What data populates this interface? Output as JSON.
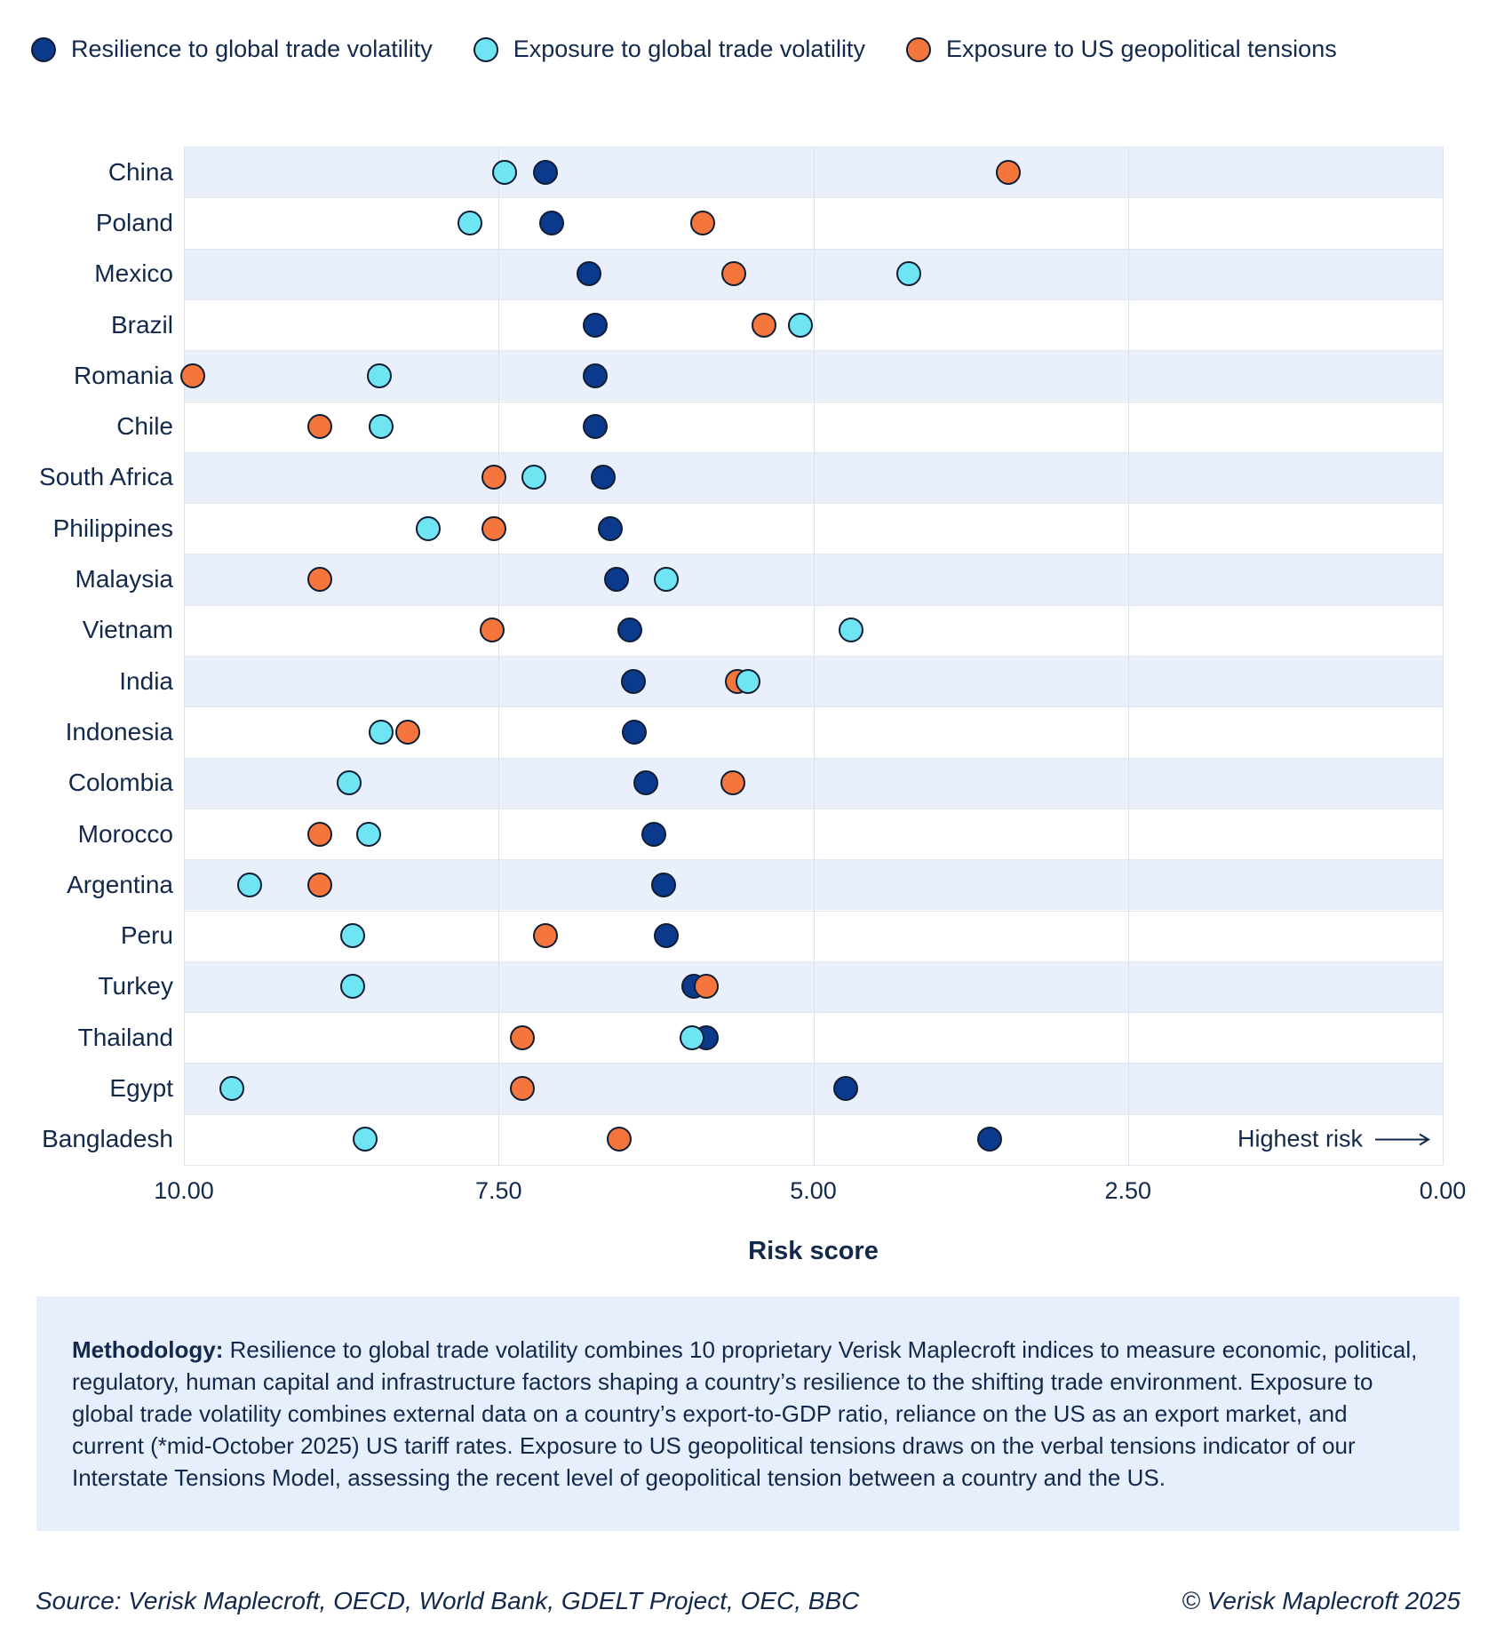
{
  "colors": {
    "text": "#13294B",
    "stripe": "#E9F0FB",
    "gridline": "#DCE2EC",
    "dot_border": "#0F1D35",
    "methodology_bg": "#E7EFFC"
  },
  "chart_data": {
    "type": "scatter",
    "subtype": "horizontal-dot-plot",
    "xlabel": "Risk score",
    "x_axis": {
      "min": 0,
      "max": 10,
      "reversed": true,
      "ticks": [
        "10.00",
        "7.50",
        "5.00",
        "2.50",
        "0.00"
      ]
    },
    "grid": true,
    "legend_position": "top",
    "annotation": {
      "label": "Highest risk",
      "arrow_direction": "right"
    },
    "series": [
      {
        "key": "resilience",
        "name": "Resilience to global trade volatility",
        "color": "#0B3A8C"
      },
      {
        "key": "exposure_trade",
        "name": "Exposure to global trade volatility",
        "color": "#6FE4F2"
      },
      {
        "key": "exposure_us",
        "name": "Exposure to US geopolitical tensions",
        "color": "#F5763C"
      }
    ],
    "draw_order": [
      "resilience",
      "exposure_us",
      "exposure_trade"
    ],
    "rows": [
      {
        "country": "China",
        "resilience": 7.13,
        "exposure_trade": 7.45,
        "exposure_us": 3.45
      },
      {
        "country": "Poland",
        "resilience": 7.08,
        "exposure_trade": 7.73,
        "exposure_us": 5.88
      },
      {
        "country": "Mexico",
        "resilience": 6.78,
        "exposure_trade": 4.24,
        "exposure_us": 5.63
      },
      {
        "country": "Brazil",
        "resilience": 6.73,
        "exposure_trade": 5.1,
        "exposure_us": 5.39
      },
      {
        "country": "Romania",
        "resilience": 6.73,
        "exposure_trade": 8.45,
        "exposure_us": 9.93
      },
      {
        "country": "Chile",
        "resilience": 6.73,
        "exposure_trade": 8.43,
        "exposure_us": 8.92
      },
      {
        "country": "South Africa",
        "resilience": 6.67,
        "exposure_trade": 7.22,
        "exposure_us": 7.54
      },
      {
        "country": "Philippines",
        "resilience": 6.61,
        "exposure_trade": 8.06,
        "exposure_us": 7.54
      },
      {
        "country": "Malaysia",
        "resilience": 6.56,
        "exposure_trade": 6.17,
        "exposure_us": 8.92
      },
      {
        "country": "Vietnam",
        "resilience": 6.46,
        "exposure_trade": 4.7,
        "exposure_us": 7.55
      },
      {
        "country": "India",
        "resilience": 6.43,
        "exposure_trade": 5.52,
        "exposure_us": 5.6
      },
      {
        "country": "Indonesia",
        "resilience": 6.42,
        "exposure_trade": 8.43,
        "exposure_us": 8.22
      },
      {
        "country": "Colombia",
        "resilience": 6.33,
        "exposure_trade": 8.69,
        "exposure_us": 5.64
      },
      {
        "country": "Morocco",
        "resilience": 6.27,
        "exposure_trade": 8.53,
        "exposure_us": 8.92
      },
      {
        "country": "Argentina",
        "resilience": 6.19,
        "exposure_trade": 9.48,
        "exposure_us": 8.92
      },
      {
        "country": "Peru",
        "resilience": 6.17,
        "exposure_trade": 8.66,
        "exposure_us": 7.13
      },
      {
        "country": "Turkey",
        "resilience": 5.95,
        "exposure_trade": 8.66,
        "exposure_us": 5.85
      },
      {
        "country": "Thailand",
        "resilience": 5.85,
        "exposure_trade": 5.96,
        "exposure_us": 7.31
      },
      {
        "country": "Egypt",
        "resilience": 4.74,
        "exposure_trade": 9.62,
        "exposure_us": 7.31
      },
      {
        "country": "Bangladesh",
        "resilience": 3.6,
        "exposure_trade": 8.56,
        "exposure_us": 6.54
      }
    ]
  },
  "methodology": {
    "label": "Methodology:",
    "text": " Resilience to global trade volatility combines 10 proprietary Verisk Maplecroft indices to measure economic, political, regulatory, human capital and infrastructure factors shaping a country’s resilience to the shifting trade environment. Exposure to global trade volatility combines external data on a country’s export-to-GDP ratio, reliance on the US as an export market, and current (*mid-October 2025) US tariff rates. Exposure to US geopolitical tensions draws on the verbal tensions indicator of our Interstate Tensions Model, assessing the recent level of geopolitical tension between a country and the US."
  },
  "source": {
    "left": "Source: Verisk Maplecroft, OECD, World Bank, GDELT Project, OEC, BBC",
    "right": "© Verisk Maplecroft 2025"
  }
}
